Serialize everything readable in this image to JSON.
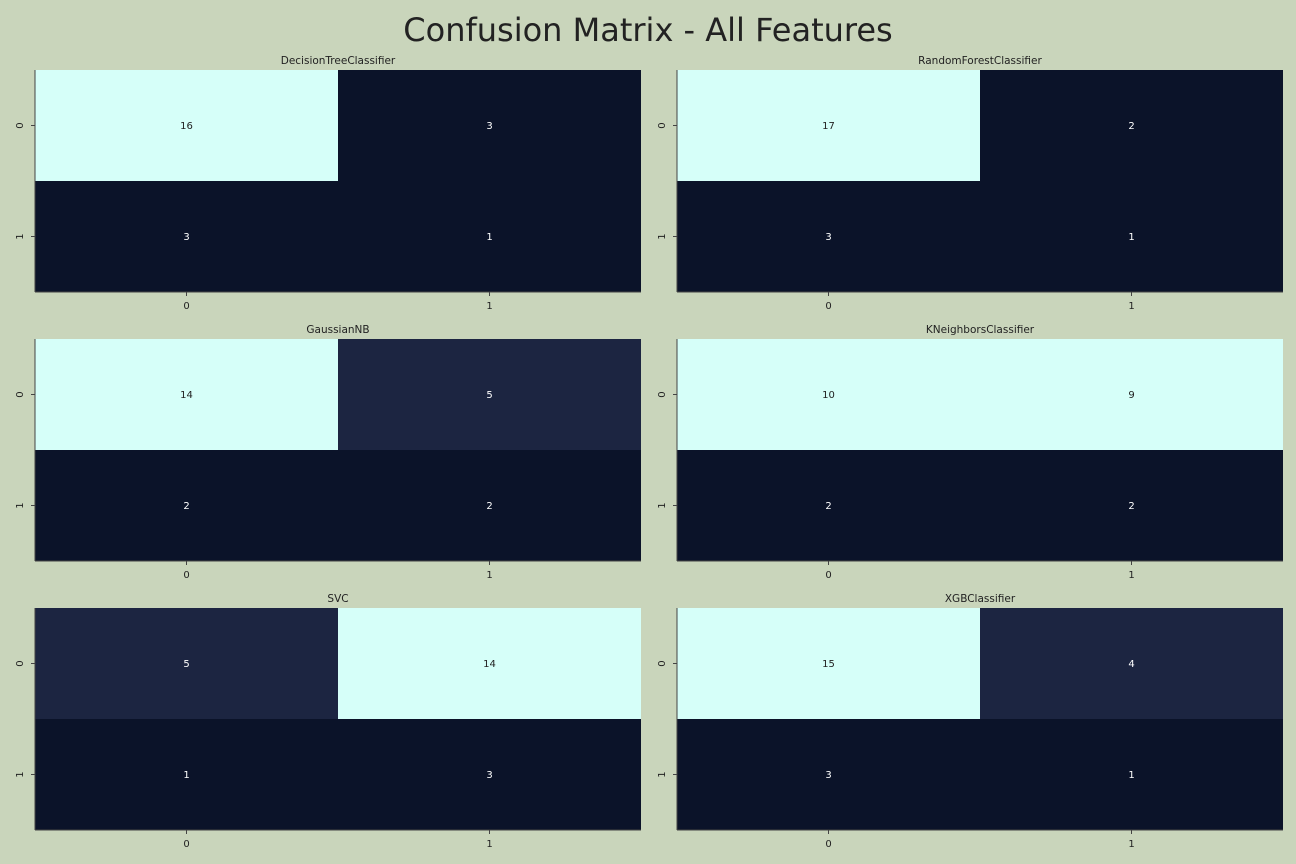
{
  "title": "Confusion Matrix - All Features",
  "colors": {
    "background": "#c9d5bb",
    "cell_low": "#0b1329",
    "cell_mid": "#1c2541",
    "cell_high": "#d6fff9",
    "text_on_dark": "#ffffff",
    "text_on_light": "#222222"
  },
  "chart_data": [
    {
      "type": "heatmap",
      "title": "DecisionTreeClassifier",
      "x_ticks": [
        "0",
        "1"
      ],
      "y_ticks": [
        "0",
        "1"
      ],
      "values": [
        [
          16,
          3
        ],
        [
          3,
          1
        ]
      ]
    },
    {
      "type": "heatmap",
      "title": "RandomForestClassifier",
      "x_ticks": [
        "0",
        "1"
      ],
      "y_ticks": [
        "0",
        "1"
      ],
      "values": [
        [
          17,
          2
        ],
        [
          3,
          1
        ]
      ]
    },
    {
      "type": "heatmap",
      "title": "GaussianNB",
      "x_ticks": [
        "0",
        "1"
      ],
      "y_ticks": [
        "0",
        "1"
      ],
      "values": [
        [
          14,
          5
        ],
        [
          2,
          2
        ]
      ]
    },
    {
      "type": "heatmap",
      "title": "KNeighborsClassifier",
      "x_ticks": [
        "0",
        "1"
      ],
      "y_ticks": [
        "0",
        "1"
      ],
      "values": [
        [
          10,
          9
        ],
        [
          2,
          2
        ]
      ]
    },
    {
      "type": "heatmap",
      "title": "SVC",
      "x_ticks": [
        "0",
        "1"
      ],
      "y_ticks": [
        "0",
        "1"
      ],
      "values": [
        [
          5,
          14
        ],
        [
          1,
          3
        ]
      ]
    },
    {
      "type": "heatmap",
      "title": "XGBClassifier",
      "x_ticks": [
        "0",
        "1"
      ],
      "y_ticks": [
        "0",
        "1"
      ],
      "values": [
        [
          15,
          4
        ],
        [
          3,
          1
        ]
      ]
    }
  ]
}
